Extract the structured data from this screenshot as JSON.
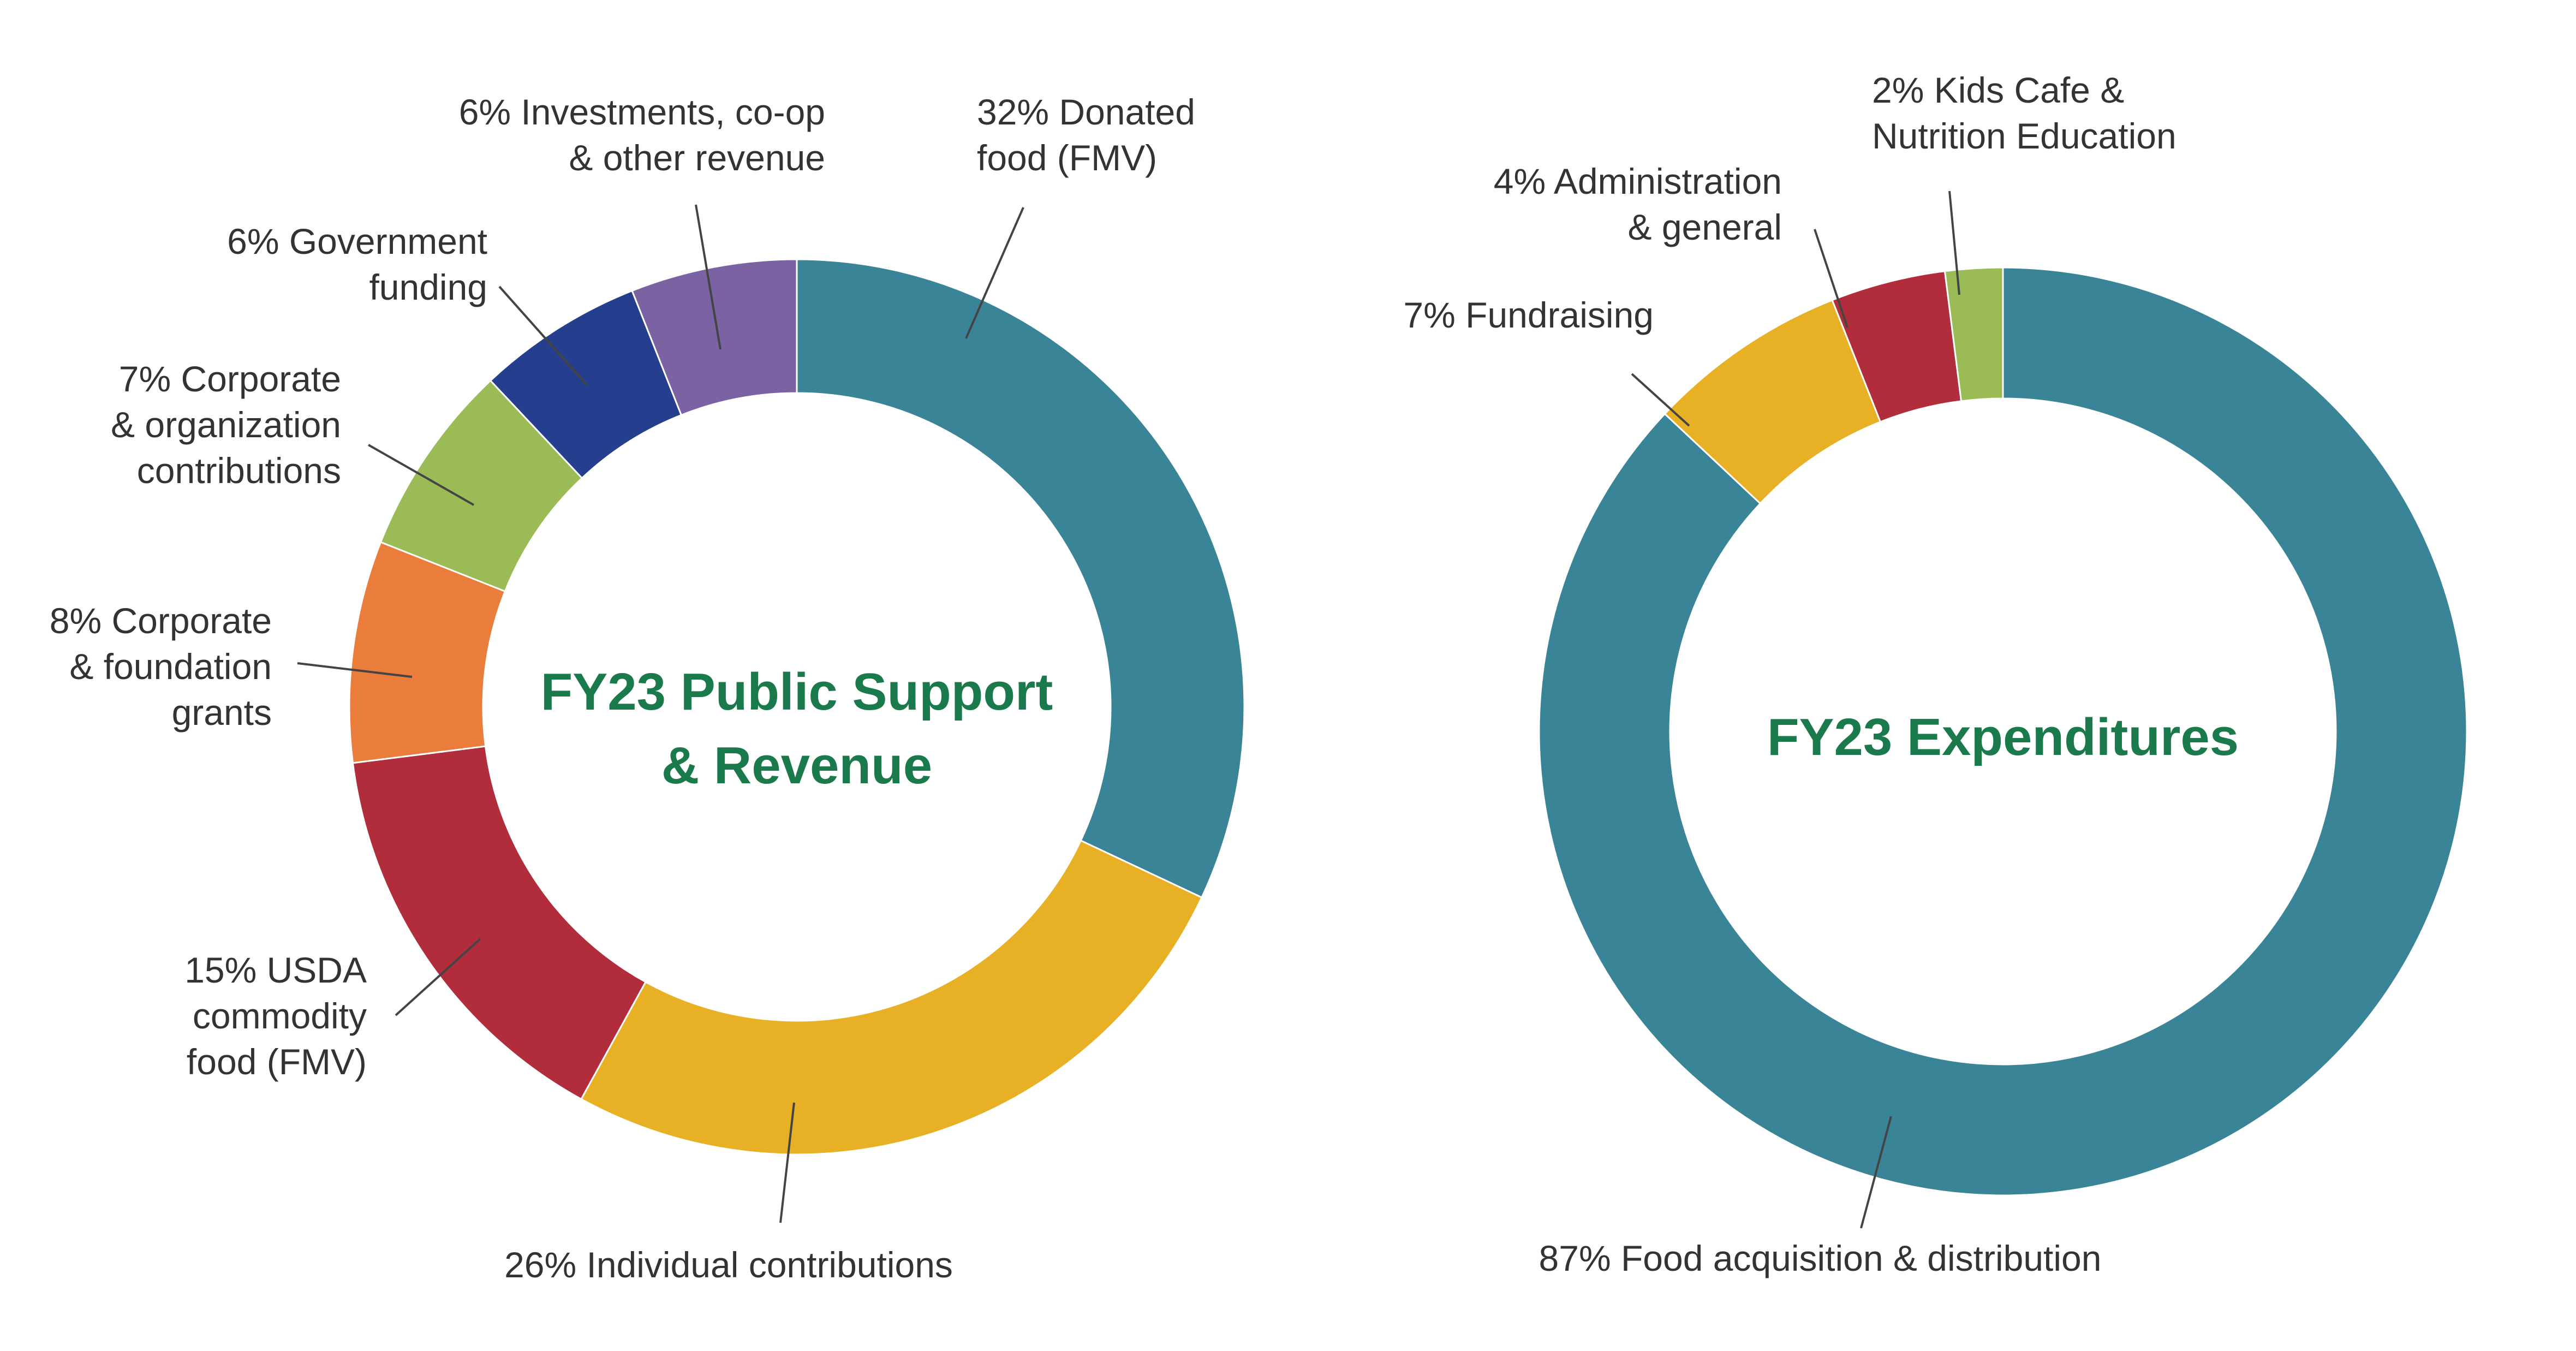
{
  "accent_color": "#1a7a4c",
  "chart_data": [
    {
      "type": "pie",
      "title_lines": [
        "FY23 Public Support",
        "& Revenue"
      ],
      "slices": [
        {
          "value": 32,
          "label_lines": [
            "32% Donated",
            "food (FMV)"
          ],
          "color": "#3a8498"
        },
        {
          "value": 26,
          "label_lines": [
            "26% Individual contributions"
          ],
          "color": "#e8b024"
        },
        {
          "value": 15,
          "label_lines": [
            "15% USDA",
            "commodity",
            "food (FMV)"
          ],
          "color": "#b22d3b"
        },
        {
          "value": 8,
          "label_lines": [
            "8% Corporate",
            "& foundation",
            "grants"
          ],
          "color": "#ea7c3c"
        },
        {
          "value": 7,
          "label_lines": [
            "7% Corporate",
            "& organization",
            "contributions"
          ],
          "color": "#9bbb57"
        },
        {
          "value": 6,
          "label_lines": [
            "6% Government",
            "funding"
          ],
          "color": "#253f8e"
        },
        {
          "value": 6,
          "label_lines": [
            "6% Investments, co-op",
            "& other revenue"
          ],
          "color": "#7b62a3"
        }
      ]
    },
    {
      "type": "pie",
      "title_lines": [
        "FY23 Expenditures"
      ],
      "slices": [
        {
          "value": 87,
          "label_lines": [
            "87% Food acquisition & distribution"
          ],
          "color": "#3a8498"
        },
        {
          "value": 7,
          "label_lines": [
            "7% Fundraising"
          ],
          "color": "#e8b024"
        },
        {
          "value": 4,
          "label_lines": [
            "4% Administration",
            "& general"
          ],
          "color": "#b22d3b"
        },
        {
          "value": 2,
          "label_lines": [
            "2% Kids Cafe &",
            "Nutrition Education"
          ],
          "color": "#9bbb57"
        }
      ]
    }
  ]
}
